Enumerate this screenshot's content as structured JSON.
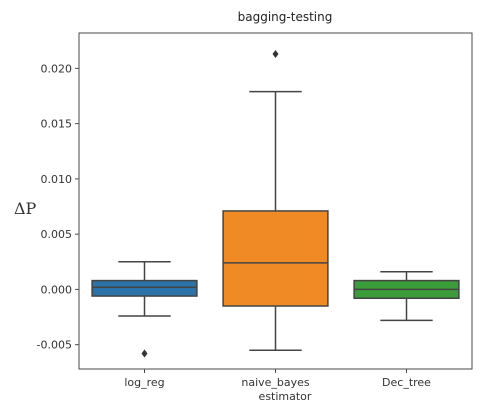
{
  "chart_data": {
    "type": "box",
    "title": "bagging-testing",
    "xlabel": "estimator",
    "ylabel": "ΔP",
    "ylim": [
      -0.0072,
      0.0232
    ],
    "yticks": [
      -0.005,
      0.0,
      0.005,
      0.01,
      0.015,
      0.02
    ],
    "ytick_labels": [
      "-0.005",
      "0.000",
      "0.005",
      "0.010",
      "0.015",
      "0.020"
    ],
    "grid": false,
    "categories": [
      "log_reg",
      "naive_bayes",
      "Dec_tree"
    ],
    "boxes": [
      {
        "category": "log_reg",
        "color": "#2a72a8",
        "whisker_low": -0.0024,
        "q1": -0.0006,
        "median": 0.0002,
        "q3": 0.0008,
        "whisker_high": 0.0025,
        "outliers": [
          -0.0058
        ]
      },
      {
        "category": "naive_bayes",
        "color": "#f08a24",
        "whisker_low": -0.0055,
        "q1": -0.0015,
        "median": 0.0024,
        "q3": 0.0071,
        "whisker_high": 0.0179,
        "outliers": [
          0.0213
        ]
      },
      {
        "category": "Dec_tree",
        "color": "#3a9d3a",
        "whisker_low": -0.0028,
        "q1": -0.0008,
        "median": 0.0,
        "q3": 0.0008,
        "whisker_high": 0.0016,
        "outliers": []
      }
    ]
  }
}
